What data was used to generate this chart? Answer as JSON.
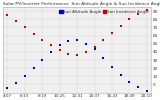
{
  "title": "Solar PV/Inverter Performance  Sun Altitude Angle & Sun Incidence Angle on PV Panels",
  "bg_color": "#ffffff",
  "plot_bg": "#f0f0f0",
  "grid_color": "#aaaaaa",
  "text_color": "#333333",
  "legend_labels": [
    "Sun Altitude Angle",
    "Sun Incidence Angle"
  ],
  "legend_colors": [
    "#0000cc",
    "#cc0000"
  ],
  "x_labels": [
    "4:07",
    "5:10",
    "6:13",
    "7:16",
    "8:19",
    "9:22",
    "10:25",
    "11:28",
    "12:31",
    "13:34",
    "14:37",
    "15:40",
    "16:43",
    "17:46",
    "18:49",
    "19:52",
    "20:10"
  ],
  "x_values": [
    0,
    1,
    2,
    3,
    4,
    5,
    6,
    7,
    8,
    9,
    10,
    11,
    12,
    13,
    14,
    15,
    16
  ],
  "altitude_y": [
    -5,
    2,
    10,
    20,
    30,
    40,
    48,
    53,
    55,
    50,
    43,
    33,
    22,
    12,
    3,
    -3,
    -8
  ],
  "incidence_y": [
    85,
    78,
    70,
    62,
    55,
    48,
    42,
    38,
    36,
    40,
    46,
    54,
    63,
    72,
    80,
    87,
    92
  ],
  "ylim": [
    -10,
    95
  ],
  "yticks": [
    0,
    10,
    20,
    30,
    40,
    50,
    60,
    70,
    80,
    90
  ],
  "dot_size": 3,
  "title_fontsize": 3.2,
  "tick_fontsize": 3.0,
  "legend_fontsize": 3.0
}
